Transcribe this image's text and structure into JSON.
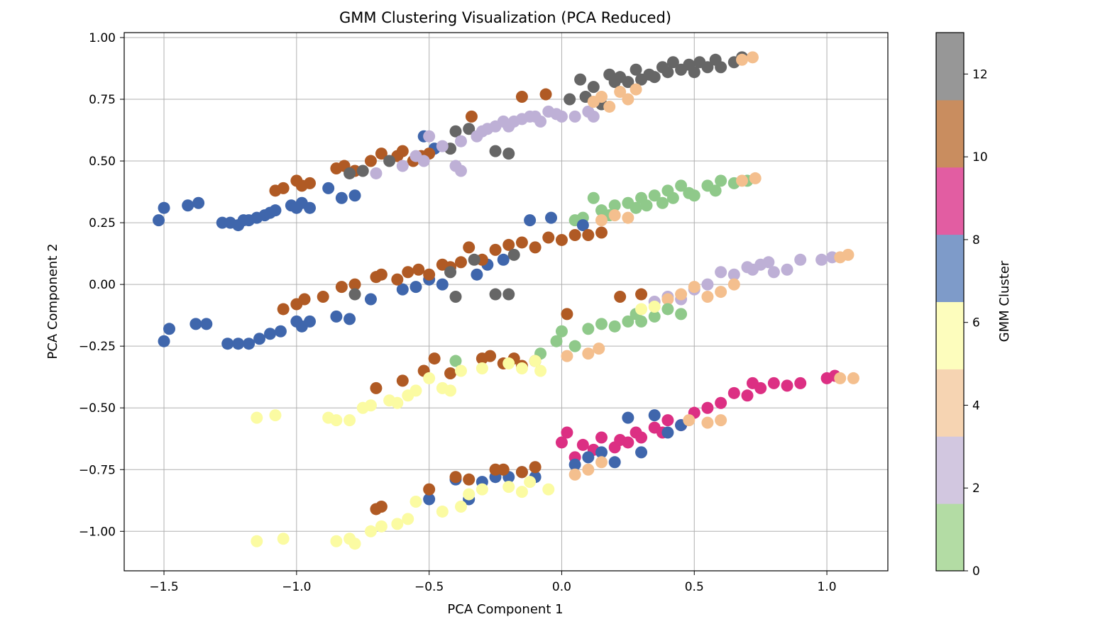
{
  "chart_data": {
    "type": "scatter",
    "title": "GMM Clustering Visualization (PCA Reduced)",
    "xlabel": "PCA Component 1",
    "ylabel": "PCA Component 2",
    "xlim": [
      -1.65,
      1.23
    ],
    "ylim": [
      -1.16,
      1.02
    ],
    "grid": true,
    "x_ticks": [
      -1.5,
      -1.0,
      -0.5,
      0.0,
      0.5,
      1.0
    ],
    "x_tick_labels": [
      "−1.5",
      "−1.0",
      "−0.5",
      "0.0",
      "0.5",
      "1.0"
    ],
    "y_ticks": [
      1.0,
      0.75,
      0.5,
      0.25,
      0.0,
      -0.25,
      -0.5,
      -0.75,
      -1.0
    ],
    "y_tick_labels": [
      "1.00",
      "0.75",
      "0.50",
      "0.25",
      "0.00",
      "−0.25",
      "−0.50",
      "−0.75",
      "−1.00"
    ],
    "colorbar": {
      "label": "GMM Cluster",
      "range": [
        0,
        13
      ],
      "ticks": [
        0,
        2,
        4,
        6,
        8,
        10,
        12
      ],
      "tick_labels": [
        "0",
        "2",
        "4",
        "6",
        "8",
        "10",
        "12"
      ],
      "band_colors": [
        "#b3dca4",
        "#d2c7e0",
        "#f6d4b2",
        "#fdfdbd",
        "#7e9bc9",
        "#e25da2",
        "#c98d5f",
        "#979797"
      ]
    },
    "cluster_colors": {
      "0": "#8fc98a",
      "3": "#beb0d6",
      "4": "#f4bf8e",
      "6": "#fbfba2",
      "7": "#3f66ac",
      "9": "#dc2f83",
      "10": "#b05a24",
      "12": "#666666"
    },
    "points": [
      {
        "cluster": 7,
        "x": [
          -1.52,
          -1.5,
          -1.41,
          -1.37,
          -1.28,
          -1.25,
          -1.22,
          -1.2,
          -1.18,
          -1.15,
          -1.12,
          -1.1,
          -1.08,
          -1.02,
          -1.0,
          -0.98,
          -0.95,
          -0.88,
          -0.83,
          -0.78,
          -0.52,
          -0.48
        ],
        "y": [
          0.26,
          0.31,
          0.32,
          0.33,
          0.25,
          0.25,
          0.24,
          0.26,
          0.26,
          0.27,
          0.28,
          0.29,
          0.3,
          0.32,
          0.31,
          0.33,
          0.31,
          0.39,
          0.35,
          0.36,
          0.6,
          0.55
        ]
      },
      {
        "cluster": 10,
        "x": [
          -1.08,
          -1.05,
          -1.0,
          -0.98,
          -0.95,
          -0.85,
          -0.82,
          -0.78,
          -0.72,
          -0.68,
          -0.62,
          -0.6,
          -0.56,
          -0.53,
          -0.5,
          -0.34,
          -0.15,
          -0.06
        ],
        "y": [
          0.38,
          0.39,
          0.42,
          0.4,
          0.41,
          0.47,
          0.48,
          0.46,
          0.5,
          0.53,
          0.52,
          0.54,
          0.5,
          0.52,
          0.53,
          0.68,
          0.76,
          0.77
        ]
      },
      {
        "cluster": 12,
        "x": [
          -0.8,
          -0.75,
          -0.65,
          -0.42,
          -0.4,
          -0.25,
          -0.2,
          -0.35,
          0.03,
          0.07,
          0.09,
          0.12,
          0.15,
          0.18,
          0.2,
          0.22,
          0.25,
          0.28,
          0.3,
          0.33,
          0.35,
          0.38,
          0.4,
          0.42,
          0.45,
          0.48,
          0.5,
          0.52,
          0.55,
          0.58,
          0.6,
          0.65,
          0.68
        ],
        "y": [
          0.45,
          0.46,
          0.5,
          0.55,
          0.62,
          0.54,
          0.53,
          0.63,
          0.75,
          0.83,
          0.76,
          0.8,
          0.73,
          0.85,
          0.82,
          0.84,
          0.82,
          0.87,
          0.83,
          0.85,
          0.84,
          0.88,
          0.86,
          0.9,
          0.87,
          0.89,
          0.86,
          0.9,
          0.88,
          0.91,
          0.88,
          0.9,
          0.92
        ]
      },
      {
        "cluster": 3,
        "x": [
          -0.7,
          -0.6,
          -0.55,
          -0.52,
          -0.5,
          -0.45,
          -0.4,
          -0.38,
          -0.32,
          -0.3,
          -0.28,
          -0.25,
          -0.22,
          -0.2,
          -0.18,
          -0.15,
          -0.12,
          -0.1,
          -0.08,
          -0.05,
          -0.02,
          0.0,
          0.05,
          0.1,
          0.12,
          -0.38
        ],
        "y": [
          0.45,
          0.48,
          0.52,
          0.5,
          0.6,
          0.56,
          0.48,
          0.58,
          0.6,
          0.62,
          0.63,
          0.64,
          0.66,
          0.64,
          0.66,
          0.67,
          0.68,
          0.68,
          0.66,
          0.7,
          0.69,
          0.68,
          0.68,
          0.7,
          0.68,
          0.46
        ]
      },
      {
        "cluster": 4,
        "x": [
          0.12,
          0.15,
          0.18,
          0.22,
          0.25,
          0.28,
          0.68,
          0.72
        ],
        "y": [
          0.74,
          0.76,
          0.72,
          0.78,
          0.75,
          0.79,
          0.91,
          0.92
        ]
      },
      {
        "cluster": 0,
        "x": [
          0.05,
          0.08,
          0.12,
          0.15,
          0.18,
          0.2,
          0.25,
          0.28,
          0.3,
          0.32,
          0.35,
          0.38,
          0.4,
          0.42,
          0.45,
          0.48,
          0.5,
          0.55,
          0.58,
          0.6,
          0.65,
          0.7
        ],
        "y": [
          0.26,
          0.27,
          0.35,
          0.3,
          0.28,
          0.32,
          0.33,
          0.31,
          0.35,
          0.32,
          0.36,
          0.33,
          0.38,
          0.35,
          0.4,
          0.37,
          0.36,
          0.4,
          0.38,
          0.42,
          0.41,
          0.42
        ]
      },
      {
        "cluster": 4,
        "x": [
          0.15,
          0.2,
          0.25,
          0.68,
          0.73
        ],
        "y": [
          0.26,
          0.28,
          0.27,
          0.42,
          0.43
        ]
      },
      {
        "cluster": 7,
        "x": [
          -0.12,
          -0.04,
          0.08,
          -1.5,
          -1.48,
          -1.38,
          -1.34,
          -1.26,
          -1.22,
          -1.18,
          -1.14,
          -1.1,
          -1.06,
          -1.0,
          -0.98,
          -0.95,
          -0.85,
          -0.8,
          -0.72,
          -0.6,
          -0.55,
          -0.5,
          -0.45,
          -0.32,
          -0.28,
          -0.22
        ],
        "y": [
          0.26,
          0.27,
          0.24,
          -0.23,
          -0.18,
          -0.16,
          -0.16,
          -0.24,
          -0.24,
          -0.24,
          -0.22,
          -0.2,
          -0.19,
          -0.15,
          -0.17,
          -0.15,
          -0.13,
          -0.14,
          -0.06,
          -0.02,
          -0.01,
          0.02,
          0.0,
          0.04,
          0.08,
          0.1
        ]
      },
      {
        "cluster": 10,
        "x": [
          -1.05,
          -1.0,
          -0.97,
          -0.9,
          -0.83,
          -0.78,
          -0.7,
          -0.68,
          -0.62,
          -0.58,
          -0.54,
          -0.5,
          -0.45,
          -0.42,
          -0.38,
          -0.35,
          -0.3,
          -0.25,
          -0.2,
          -0.15,
          -0.1,
          -0.05,
          0.0,
          0.05,
          0.1,
          0.15
        ],
        "y": [
          -0.1,
          -0.08,
          -0.06,
          -0.05,
          -0.01,
          0.0,
          0.03,
          0.04,
          0.02,
          0.05,
          0.06,
          0.04,
          0.08,
          0.07,
          0.09,
          0.15,
          0.1,
          0.14,
          0.16,
          0.17,
          0.15,
          0.19,
          0.18,
          0.2,
          0.2,
          0.21
        ]
      },
      {
        "cluster": 12,
        "x": [
          -0.78,
          -0.42,
          -0.4,
          -0.33,
          -0.25,
          -0.2,
          -0.18
        ],
        "y": [
          -0.04,
          0.05,
          -0.05,
          0.1,
          -0.04,
          -0.04,
          0.12
        ]
      },
      {
        "cluster": 3,
        "x": [
          0.35,
          0.4,
          0.45,
          0.5,
          0.55,
          0.6,
          0.65,
          0.7,
          0.72,
          0.75,
          0.78,
          0.8,
          0.85,
          0.9,
          0.98,
          1.02
        ],
        "y": [
          -0.07,
          -0.05,
          -0.06,
          -0.02,
          0.0,
          0.05,
          0.04,
          0.07,
          0.06,
          0.08,
          0.09,
          0.05,
          0.06,
          0.1,
          0.1,
          0.11
        ]
      },
      {
        "cluster": 4,
        "x": [
          0.4,
          0.45,
          0.5,
          0.55,
          0.6,
          0.65,
          1.05,
          1.08
        ],
        "y": [
          -0.06,
          -0.04,
          -0.01,
          -0.05,
          -0.03,
          0.0,
          0.11,
          0.12
        ]
      },
      {
        "cluster": 0,
        "x": [
          -0.08,
          -0.02,
          0.0,
          0.05,
          0.1,
          0.15,
          0.2,
          0.25,
          0.28,
          0.3,
          0.35,
          0.4,
          0.45,
          -0.4
        ],
        "y": [
          -0.28,
          -0.23,
          -0.19,
          -0.25,
          -0.18,
          -0.16,
          -0.17,
          -0.15,
          -0.12,
          -0.15,
          -0.13,
          -0.1,
          -0.12,
          -0.31
        ]
      },
      {
        "cluster": 4,
        "x": [
          0.02,
          0.1,
          0.14
        ],
        "y": [
          -0.29,
          -0.28,
          -0.26
        ]
      },
      {
        "cluster": 10,
        "x": [
          -0.7,
          -0.6,
          -0.52,
          -0.48,
          -0.42,
          -0.3,
          -0.27,
          -0.22,
          -0.18,
          -0.15,
          -0.1,
          0.02,
          0.22,
          0.3
        ],
        "y": [
          -0.42,
          -0.39,
          -0.35,
          -0.3,
          -0.36,
          -0.3,
          -0.29,
          -0.32,
          -0.3,
          -0.33,
          -0.31,
          -0.12,
          -0.05,
          -0.04
        ]
      },
      {
        "cluster": 6,
        "x": [
          -1.15,
          -1.08,
          -0.88,
          -0.85,
          -0.8,
          -0.75,
          -0.72,
          -0.65,
          -0.62,
          -0.58,
          -0.55,
          -0.5,
          -0.45,
          -0.42,
          -0.38,
          -0.3,
          -0.2,
          -0.15,
          -0.1,
          -0.08,
          0.3,
          0.35
        ],
        "y": [
          -0.54,
          -0.53,
          -0.54,
          -0.55,
          -0.55,
          -0.5,
          -0.49,
          -0.47,
          -0.48,
          -0.45,
          -0.43,
          -0.38,
          -0.42,
          -0.43,
          -0.35,
          -0.34,
          -0.32,
          -0.34,
          -0.31,
          -0.35,
          -0.1,
          -0.09
        ]
      },
      {
        "cluster": 9,
        "x": [
          0.0,
          0.02,
          0.05,
          0.08,
          0.12,
          0.15,
          0.2,
          0.22,
          0.25,
          0.28,
          0.3,
          0.35,
          0.38,
          0.4,
          0.45,
          0.5,
          0.55,
          0.6,
          0.65,
          0.7,
          0.72,
          0.75,
          0.8,
          0.85,
          0.9,
          1.0,
          1.03
        ],
        "y": [
          -0.64,
          -0.6,
          -0.7,
          -0.65,
          -0.67,
          -0.62,
          -0.66,
          -0.63,
          -0.64,
          -0.6,
          -0.62,
          -0.58,
          -0.6,
          -0.55,
          -0.57,
          -0.52,
          -0.5,
          -0.48,
          -0.44,
          -0.45,
          -0.4,
          -0.42,
          -0.4,
          -0.41,
          -0.4,
          -0.38,
          -0.37
        ]
      },
      {
        "cluster": 7,
        "x": [
          0.1,
          0.15,
          0.2,
          0.25,
          0.3,
          0.35,
          0.4,
          0.45,
          -0.5,
          -0.4,
          -0.35,
          -0.3,
          -0.25,
          -0.2,
          -0.15,
          -0.1,
          0.05
        ],
        "y": [
          -0.7,
          -0.68,
          -0.72,
          -0.54,
          -0.68,
          -0.53,
          -0.6,
          -0.57,
          -0.87,
          -0.79,
          -0.87,
          -0.8,
          -0.78,
          -0.78,
          -0.76,
          -0.78,
          -0.73
        ]
      },
      {
        "cluster": 4,
        "x": [
          0.05,
          0.1,
          0.15,
          0.48,
          0.55,
          0.6,
          1.05,
          1.1
        ],
        "y": [
          -0.77,
          -0.75,
          -0.72,
          -0.55,
          -0.56,
          -0.55,
          -0.38,
          -0.38
        ]
      },
      {
        "cluster": 10,
        "x": [
          -0.7,
          -0.68,
          -0.5,
          -0.4,
          -0.35,
          -0.25,
          -0.22,
          -0.15,
          -0.1
        ],
        "y": [
          -0.91,
          -0.9,
          -0.83,
          -0.78,
          -0.79,
          -0.75,
          -0.75,
          -0.76,
          -0.74
        ]
      },
      {
        "cluster": 6,
        "x": [
          -1.15,
          -1.05,
          -0.85,
          -0.8,
          -0.78,
          -0.72,
          -0.68,
          -0.62,
          -0.58,
          -0.55,
          -0.45,
          -0.38,
          -0.35,
          -0.3,
          -0.2,
          -0.15,
          -0.12,
          -0.05
        ],
        "y": [
          -1.04,
          -1.03,
          -1.04,
          -1.03,
          -1.05,
          -1.0,
          -0.98,
          -0.97,
          -0.95,
          -0.88,
          -0.92,
          -0.9,
          -0.85,
          -0.83,
          -0.82,
          -0.84,
          -0.8,
          -0.83
        ]
      }
    ]
  }
}
